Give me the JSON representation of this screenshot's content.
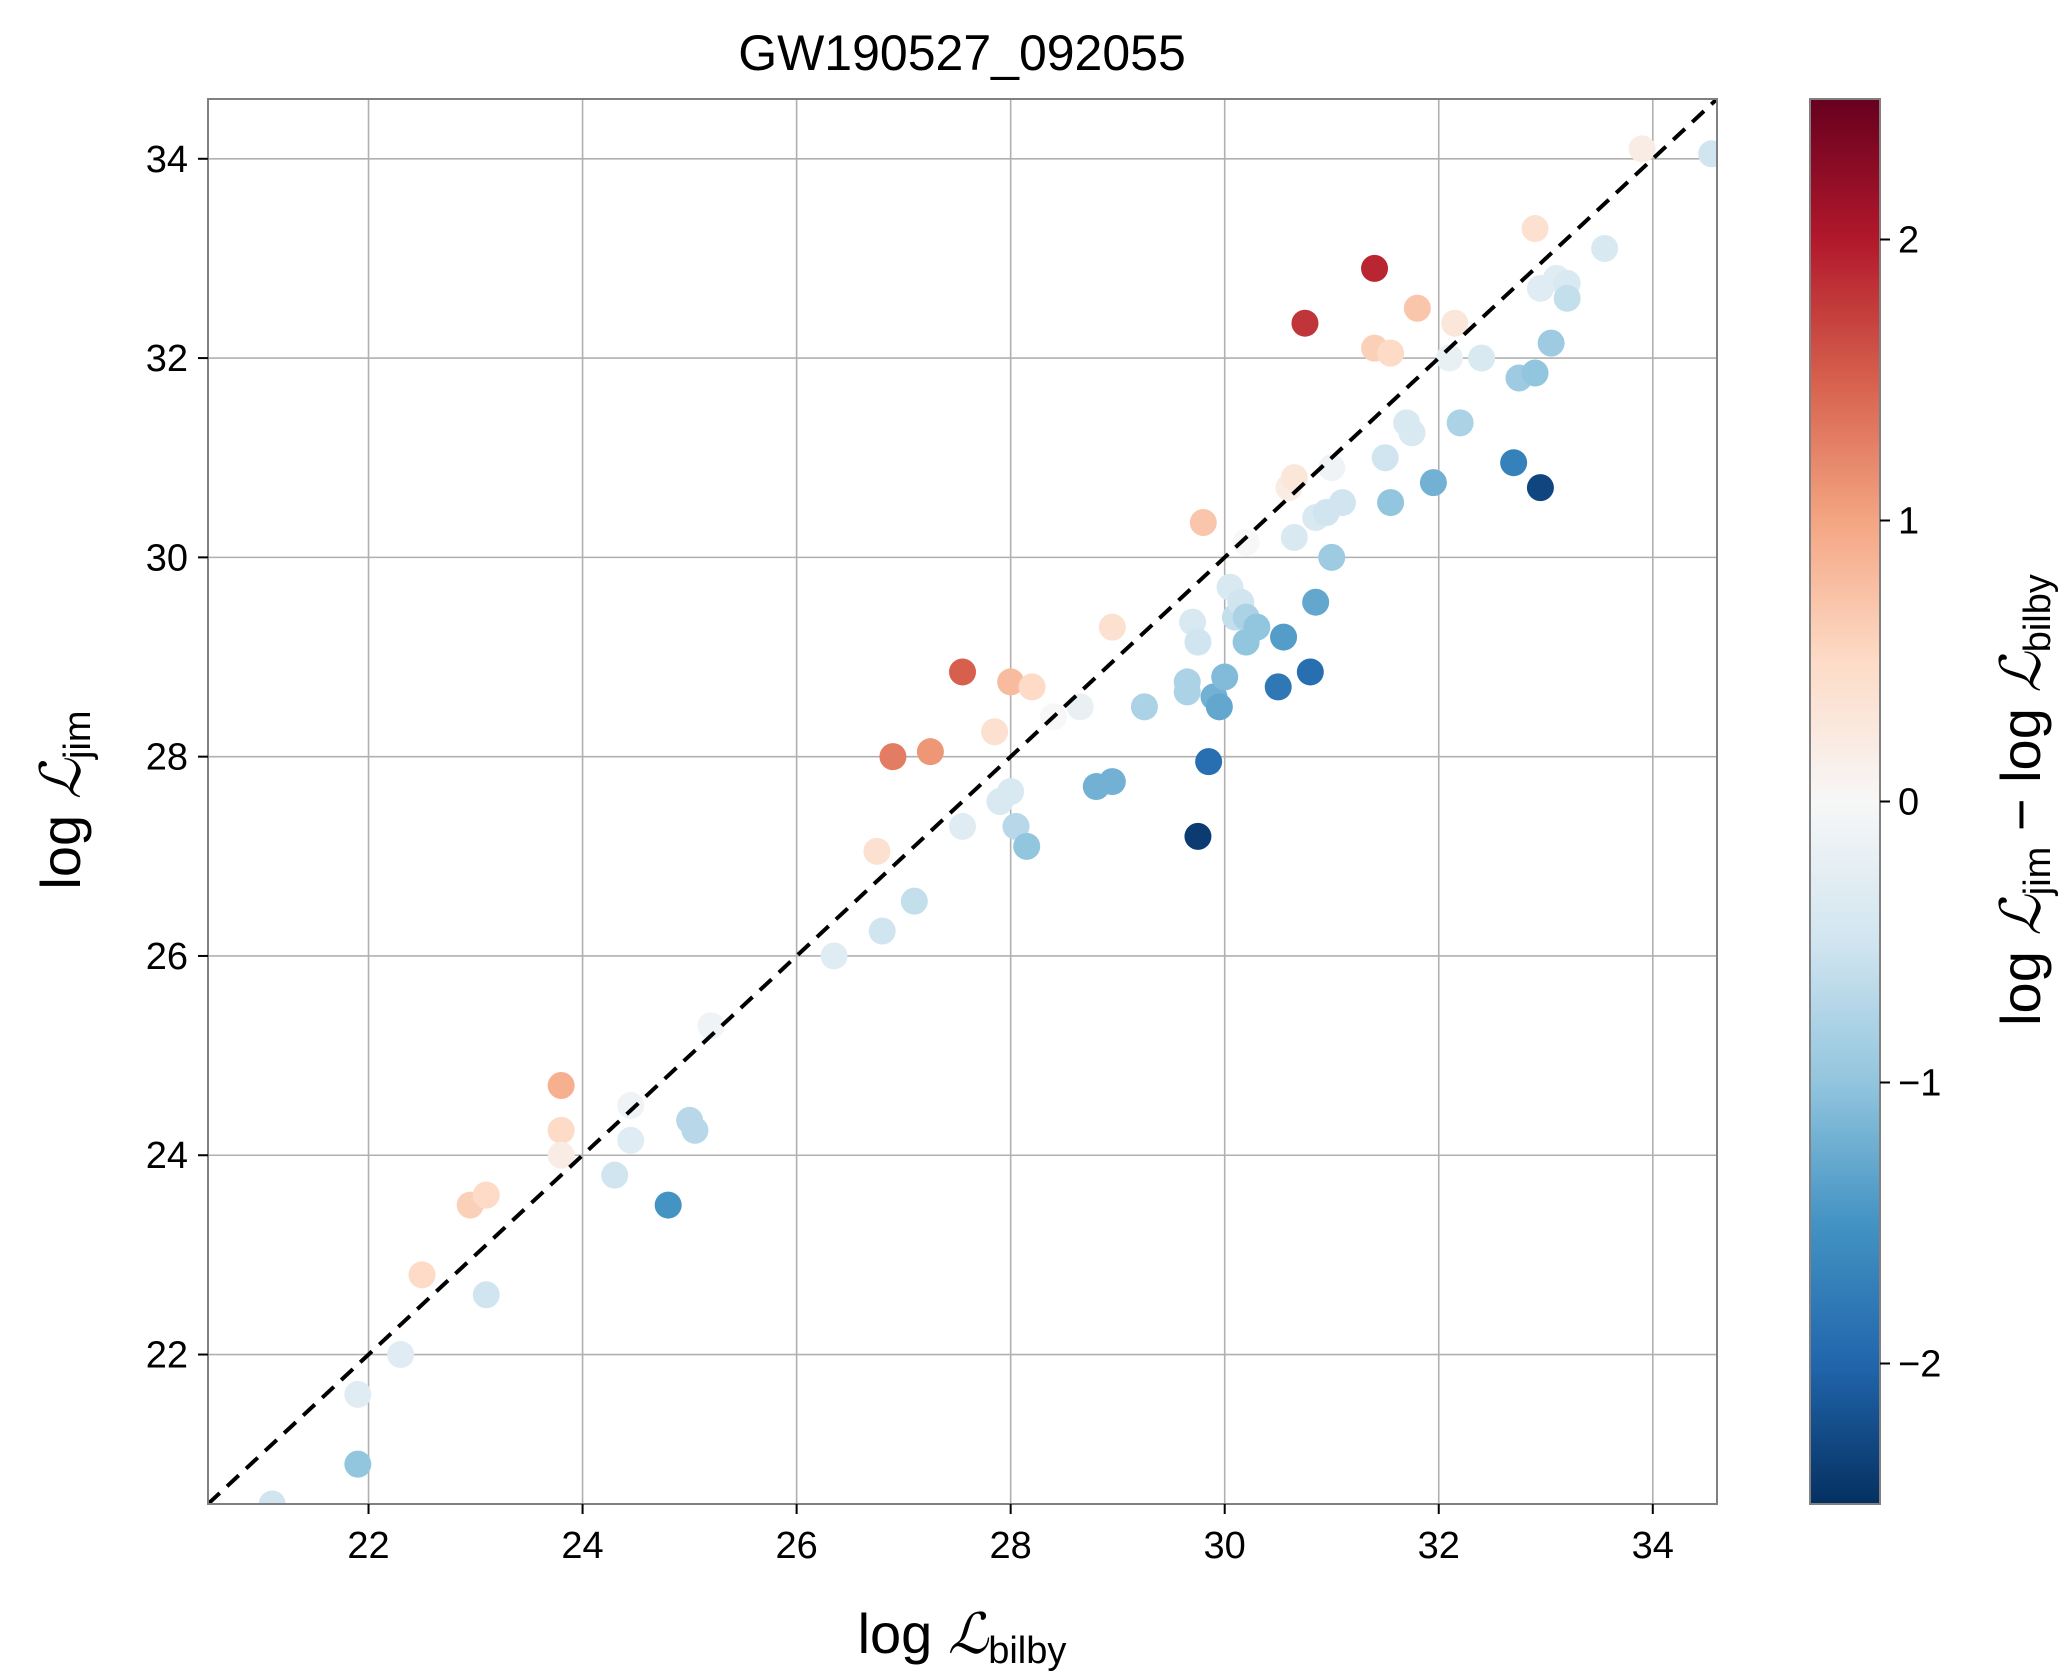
{
  "chart_data": {
    "type": "scatter",
    "title": "GW190527_092055",
    "xlabel": {
      "prefix": "log ",
      "symbol": "ℒ",
      "subscript": "bilby"
    },
    "ylabel": {
      "prefix": "log ",
      "symbol": "ℒ",
      "subscript": "jim"
    },
    "colorbar_label": {
      "prefix1": "log ",
      "symbol1": "ℒ",
      "sub1": "jim",
      "minus": " − log ",
      "symbol2": "ℒ",
      "sub2": "bilby"
    },
    "xlim": [
      20.5,
      34.6
    ],
    "ylim": [
      20.5,
      34.6
    ],
    "xticks": [
      22,
      24,
      26,
      28,
      30,
      32,
      34
    ],
    "yticks": [
      22,
      24,
      26,
      28,
      30,
      32,
      34
    ],
    "colorbar": {
      "cmap": "RdBu_r",
      "range": [
        -2.5,
        2.5
      ],
      "ticks": [
        -2,
        -1,
        0,
        1,
        2
      ],
      "tick_labels": [
        "−2",
        "−1",
        "0",
        "1",
        "2"
      ]
    },
    "reference_line": {
      "style": "dashed",
      "color": "#000000",
      "description": "y = x"
    },
    "grid": true,
    "points": [
      {
        "x": 21.1,
        "y": 20.5,
        "c": -0.5
      },
      {
        "x": 21.9,
        "y": 20.9,
        "c": -1.0
      },
      {
        "x": 21.9,
        "y": 21.6,
        "c": -0.3
      },
      {
        "x": 22.3,
        "y": 22.0,
        "c": -0.3
      },
      {
        "x": 22.5,
        "y": 22.8,
        "c": 0.5
      },
      {
        "x": 22.95,
        "y": 23.5,
        "c": 0.6
      },
      {
        "x": 23.1,
        "y": 23.6,
        "c": 0.5
      },
      {
        "x": 23.1,
        "y": 22.6,
        "c": -0.5
      },
      {
        "x": 23.8,
        "y": 24.7,
        "c": 0.9
      },
      {
        "x": 23.8,
        "y": 24.25,
        "c": 0.5
      },
      {
        "x": 23.8,
        "y": 24.0,
        "c": 0.2
      },
      {
        "x": 24.3,
        "y": 23.8,
        "c": -0.5
      },
      {
        "x": 24.45,
        "y": 24.15,
        "c": -0.3
      },
      {
        "x": 24.45,
        "y": 24.5,
        "c": -0.1
      },
      {
        "x": 24.8,
        "y": 23.5,
        "c": -1.5
      },
      {
        "x": 25.0,
        "y": 24.35,
        "c": -0.7
      },
      {
        "x": 25.05,
        "y": 24.25,
        "c": -0.7
      },
      {
        "x": 25.2,
        "y": 25.3,
        "c": -0.1
      },
      {
        "x": 26.35,
        "y": 26.0,
        "c": -0.3
      },
      {
        "x": 26.75,
        "y": 27.05,
        "c": 0.4
      },
      {
        "x": 26.8,
        "y": 26.25,
        "c": -0.5
      },
      {
        "x": 26.9,
        "y": 28.0,
        "c": 1.3
      },
      {
        "x": 27.1,
        "y": 26.55,
        "c": -0.6
      },
      {
        "x": 27.25,
        "y": 28.05,
        "c": 1.1
      },
      {
        "x": 27.55,
        "y": 27.3,
        "c": -0.3
      },
      {
        "x": 27.55,
        "y": 28.85,
        "c": 1.5
      },
      {
        "x": 27.85,
        "y": 28.25,
        "c": 0.4
      },
      {
        "x": 27.9,
        "y": 27.55,
        "c": -0.4
      },
      {
        "x": 28.0,
        "y": 28.75,
        "c": 0.8
      },
      {
        "x": 28.0,
        "y": 27.65,
        "c": -0.4
      },
      {
        "x": 28.05,
        "y": 27.3,
        "c": -0.7
      },
      {
        "x": 28.15,
        "y": 27.1,
        "c": -1.0
      },
      {
        "x": 28.2,
        "y": 28.7,
        "c": 0.5
      },
      {
        "x": 28.4,
        "y": 28.4,
        "c": 0.0
      },
      {
        "x": 28.65,
        "y": 28.5,
        "c": -0.2
      },
      {
        "x": 28.8,
        "y": 27.7,
        "c": -1.2
      },
      {
        "x": 28.95,
        "y": 27.75,
        "c": -1.2
      },
      {
        "x": 28.95,
        "y": 29.3,
        "c": 0.4
      },
      {
        "x": 29.25,
        "y": 28.5,
        "c": -0.8
      },
      {
        "x": 29.65,
        "y": 28.75,
        "c": -0.8
      },
      {
        "x": 29.65,
        "y": 28.65,
        "c": -0.8
      },
      {
        "x": 29.7,
        "y": 29.35,
        "c": -0.4
      },
      {
        "x": 29.75,
        "y": 29.15,
        "c": -0.5
      },
      {
        "x": 29.75,
        "y": 27.2,
        "c": -2.4
      },
      {
        "x": 29.8,
        "y": 30.35,
        "c": 0.7
      },
      {
        "x": 29.85,
        "y": 27.95,
        "c": -1.9
      },
      {
        "x": 29.9,
        "y": 28.6,
        "c": -1.2
      },
      {
        "x": 29.95,
        "y": 28.5,
        "c": -1.3
      },
      {
        "x": 30.0,
        "y": 28.8,
        "c": -1.1
      },
      {
        "x": 30.05,
        "y": 29.7,
        "c": -0.4
      },
      {
        "x": 30.1,
        "y": 29.4,
        "c": -0.6
      },
      {
        "x": 30.15,
        "y": 29.55,
        "c": -0.5
      },
      {
        "x": 30.2,
        "y": 29.15,
        "c": -1.0
      },
      {
        "x": 30.2,
        "y": 29.4,
        "c": -0.8
      },
      {
        "x": 30.2,
        "y": 30.15,
        "c": 0.0
      },
      {
        "x": 30.3,
        "y": 29.3,
        "c": -1.0
      },
      {
        "x": 30.5,
        "y": 28.7,
        "c": -1.8
      },
      {
        "x": 30.55,
        "y": 29.2,
        "c": -1.4
      },
      {
        "x": 30.6,
        "y": 30.7,
        "c": 0.2
      },
      {
        "x": 30.65,
        "y": 30.8,
        "c": 0.3
      },
      {
        "x": 30.65,
        "y": 30.2,
        "c": -0.4
      },
      {
        "x": 30.75,
        "y": 32.35,
        "c": 1.8
      },
      {
        "x": 30.8,
        "y": 28.85,
        "c": -1.9
      },
      {
        "x": 30.85,
        "y": 29.55,
        "c": -1.3
      },
      {
        "x": 30.85,
        "y": 30.4,
        "c": -0.4
      },
      {
        "x": 30.95,
        "y": 30.45,
        "c": -0.5
      },
      {
        "x": 31.0,
        "y": 30.0,
        "c": -0.9
      },
      {
        "x": 31.0,
        "y": 30.9,
        "c": -0.1
      },
      {
        "x": 31.1,
        "y": 30.55,
        "c": -0.5
      },
      {
        "x": 31.4,
        "y": 32.9,
        "c": 1.9
      },
      {
        "x": 31.4,
        "y": 32.1,
        "c": 0.6
      },
      {
        "x": 31.5,
        "y": 31.0,
        "c": -0.5
      },
      {
        "x": 31.55,
        "y": 32.05,
        "c": 0.5
      },
      {
        "x": 31.55,
        "y": 30.55,
        "c": -1.0
      },
      {
        "x": 31.7,
        "y": 31.35,
        "c": -0.4
      },
      {
        "x": 31.75,
        "y": 31.25,
        "c": -0.4
      },
      {
        "x": 31.8,
        "y": 32.5,
        "c": 0.7
      },
      {
        "x": 31.95,
        "y": 30.75,
        "c": -1.2
      },
      {
        "x": 32.1,
        "y": 32.0,
        "c": -0.2
      },
      {
        "x": 32.15,
        "y": 32.35,
        "c": 0.3
      },
      {
        "x": 32.2,
        "y": 31.35,
        "c": -0.8
      },
      {
        "x": 32.4,
        "y": 32.0,
        "c": -0.4
      },
      {
        "x": 32.7,
        "y": 30.95,
        "c": -1.7
      },
      {
        "x": 32.75,
        "y": 31.8,
        "c": -0.9
      },
      {
        "x": 32.9,
        "y": 31.85,
        "c": -1.0
      },
      {
        "x": 32.9,
        "y": 33.3,
        "c": 0.4
      },
      {
        "x": 32.95,
        "y": 32.7,
        "c": -0.3
      },
      {
        "x": 32.95,
        "y": 30.7,
        "c": -2.3
      },
      {
        "x": 33.05,
        "y": 32.15,
        "c": -0.9
      },
      {
        "x": 33.1,
        "y": 32.8,
        "c": -0.3
      },
      {
        "x": 33.2,
        "y": 32.75,
        "c": -0.4
      },
      {
        "x": 33.2,
        "y": 32.6,
        "c": -0.6
      },
      {
        "x": 33.55,
        "y": 33.1,
        "c": -0.4
      },
      {
        "x": 33.9,
        "y": 34.1,
        "c": 0.2
      },
      {
        "x": 34.55,
        "y": 34.05,
        "c": -0.5
      }
    ]
  }
}
